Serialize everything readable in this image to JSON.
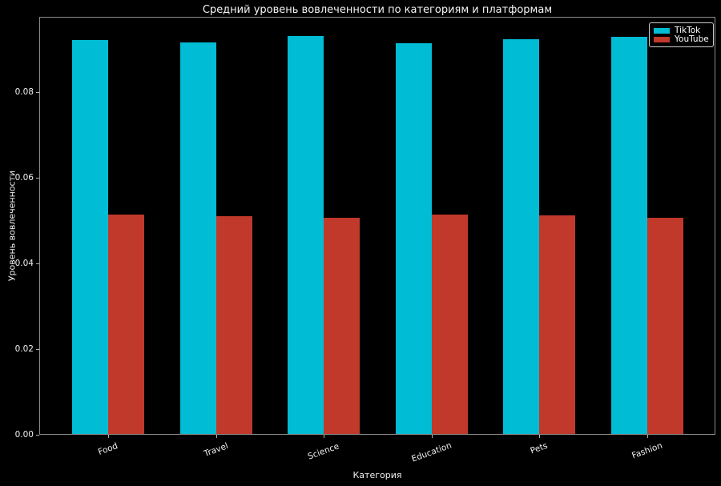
{
  "chart_data": {
    "type": "bar",
    "title": "Средний уровень вовлеченности по категориям и платформам",
    "xlabel": "Категория",
    "ylabel": "Уровень вовлеченности",
    "categories": [
      "Food",
      "Travel",
      "Science",
      "Education",
      "Pets",
      "Fashion"
    ],
    "series": [
      {
        "name": "TikTok",
        "color": "#00bcd4",
        "values": [
          0.0922,
          0.0917,
          0.0932,
          0.0915,
          0.0923,
          0.0929
        ]
      },
      {
        "name": "YouTube",
        "color": "#c0392b",
        "values": [
          0.0514,
          0.051,
          0.0507,
          0.0514,
          0.0512,
          0.0507
        ]
      }
    ],
    "ylim": [
      0,
      0.0976
    ],
    "yticks": [
      {
        "label": "0.00",
        "value": 0.0
      },
      {
        "label": "0.02",
        "value": 0.02
      },
      {
        "label": "0.04",
        "value": 0.04
      },
      {
        "label": "0.06",
        "value": 0.06
      },
      {
        "label": "0.08",
        "value": 0.08
      }
    ],
    "legend_position": "upper right",
    "grid": false,
    "colors": {
      "background": "#000000",
      "text": "#f0f0f0",
      "spine": "#8c8c8c",
      "tick": "#b5b5b5"
    }
  }
}
